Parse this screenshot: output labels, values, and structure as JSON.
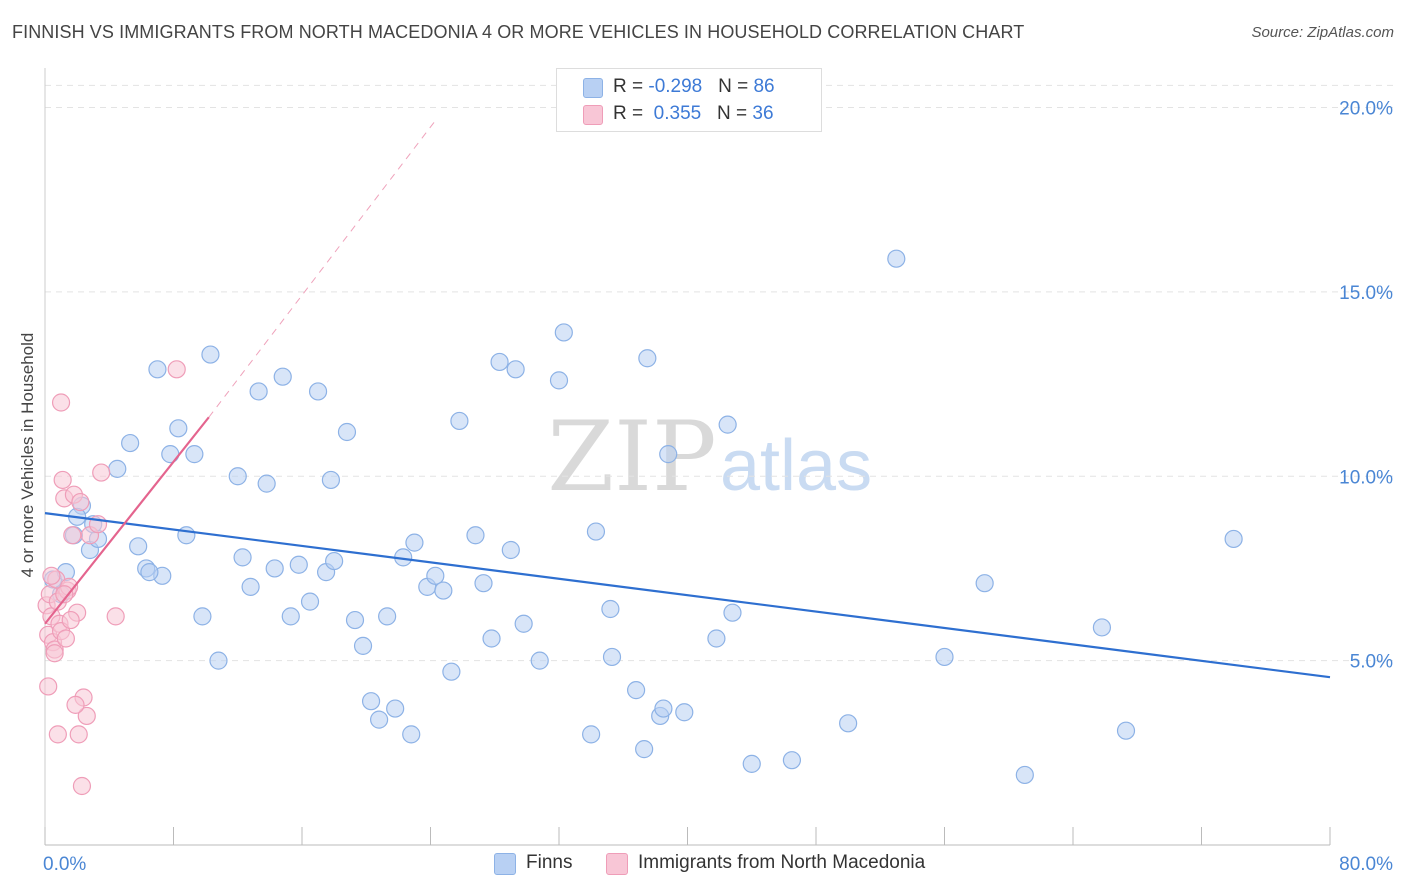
{
  "title": "FINNISH VS IMMIGRANTS FROM NORTH MACEDONIA 4 OR MORE VEHICLES IN HOUSEHOLD CORRELATION CHART",
  "source": "Source: ZipAtlas.com",
  "watermark": {
    "zip": "ZIP",
    "atlas": "atlas"
  },
  "colors": {
    "finns_fill": "#b8d0f3",
    "finns_stroke": "#8db2e6",
    "finns_line": "#2e6fd0",
    "mac_fill": "#f8c6d6",
    "mac_stroke": "#ef9db8",
    "mac_line": "#e4648e",
    "axis_text": "#4a86d4",
    "grid": "#e3e3e3"
  },
  "legend_top": {
    "rows": [
      {
        "r_label": "R = ",
        "r_value": "-0.298",
        "n_label": "N = ",
        "n_value": "86"
      },
      {
        "r_label": "R = ",
        "r_value": " 0.355",
        "n_label": "N = ",
        "n_value": "36"
      }
    ]
  },
  "chart_data": {
    "type": "scatter",
    "title": "FINNISH VS IMMIGRANTS FROM NORTH MACEDONIA 4 OR MORE VEHICLES IN HOUSEHOLD CORRELATION CHART",
    "xlabel": "",
    "ylabel": "4 or more Vehicles in Household",
    "xlim": [
      0,
      80
    ],
    "ylim": [
      0,
      20.8
    ],
    "x_tick_labels": [
      "0.0%",
      "80.0%"
    ],
    "y_ticks": [
      5,
      10,
      15,
      20
    ],
    "y_tick_labels": [
      "5.0%",
      "10.0%",
      "15.0%",
      "20.0%"
    ],
    "grid": true,
    "legend_position": "bottom",
    "series": [
      {
        "name": "Finns",
        "r": -0.298,
        "n": 86,
        "trend": {
          "x": [
            0,
            80
          ],
          "y": [
            9.0,
            4.55
          ],
          "style": "solid"
        },
        "points": [
          [
            0.5,
            7.2
          ],
          [
            1.3,
            7.4
          ],
          [
            1.8,
            8.4
          ],
          [
            2.3,
            9.2
          ],
          [
            2.8,
            8.0
          ],
          [
            3.3,
            8.3
          ],
          [
            4.5,
            10.2
          ],
          [
            5.3,
            10.9
          ],
          [
            5.8,
            8.1
          ],
          [
            6.3,
            7.5
          ],
          [
            7.0,
            12.9
          ],
          [
            7.3,
            7.3
          ],
          [
            7.8,
            10.6
          ],
          [
            8.3,
            11.3
          ],
          [
            8.8,
            8.4
          ],
          [
            9.3,
            10.6
          ],
          [
            9.8,
            6.2
          ],
          [
            10.3,
            13.3
          ],
          [
            10.8,
            5.0
          ],
          [
            12.0,
            10.0
          ],
          [
            12.3,
            7.8
          ],
          [
            12.8,
            7.0
          ],
          [
            13.3,
            12.3
          ],
          [
            13.8,
            9.8
          ],
          [
            14.3,
            7.5
          ],
          [
            14.8,
            12.7
          ],
          [
            15.3,
            6.2
          ],
          [
            15.8,
            7.6
          ],
          [
            16.5,
            6.6
          ],
          [
            17.0,
            12.3
          ],
          [
            17.5,
            7.4
          ],
          [
            17.8,
            9.9
          ],
          [
            18.0,
            7.7
          ],
          [
            18.8,
            11.2
          ],
          [
            19.3,
            6.1
          ],
          [
            19.8,
            5.4
          ],
          [
            20.3,
            3.9
          ],
          [
            20.8,
            3.4
          ],
          [
            21.3,
            6.2
          ],
          [
            21.8,
            3.7
          ],
          [
            22.3,
            7.8
          ],
          [
            22.8,
            3.0
          ],
          [
            23.0,
            8.2
          ],
          [
            23.8,
            7.0
          ],
          [
            24.3,
            7.3
          ],
          [
            24.8,
            6.9
          ],
          [
            25.3,
            4.7
          ],
          [
            25.8,
            11.5
          ],
          [
            26.8,
            8.4
          ],
          [
            27.3,
            7.1
          ],
          [
            27.8,
            5.6
          ],
          [
            28.3,
            13.1
          ],
          [
            29.3,
            12.9
          ],
          [
            29.0,
            8.0
          ],
          [
            29.8,
            6.0
          ],
          [
            30.8,
            5.0
          ],
          [
            32.0,
            12.6
          ],
          [
            32.3,
            13.9
          ],
          [
            34.0,
            3.0
          ],
          [
            34.3,
            8.5
          ],
          [
            35.2,
            6.4
          ],
          [
            35.3,
            5.1
          ],
          [
            36.8,
            4.2
          ],
          [
            37.3,
            2.6
          ],
          [
            37.5,
            13.2
          ],
          [
            38.3,
            3.5
          ],
          [
            38.5,
            3.7
          ],
          [
            38.8,
            10.6
          ],
          [
            39.8,
            3.6
          ],
          [
            41.8,
            5.6
          ],
          [
            42.5,
            11.4
          ],
          [
            42.8,
            6.3
          ],
          [
            44.0,
            2.2
          ],
          [
            46.5,
            2.3
          ],
          [
            50.0,
            3.3
          ],
          [
            53.0,
            15.9
          ],
          [
            56.0,
            5.1
          ],
          [
            58.5,
            7.1
          ],
          [
            61.0,
            1.9
          ],
          [
            65.8,
            5.9
          ],
          [
            67.3,
            3.1
          ],
          [
            74.0,
            8.3
          ],
          [
            6.5,
            7.4
          ],
          [
            1.0,
            6.8
          ],
          [
            2.0,
            8.9
          ],
          [
            3.0,
            8.7
          ]
        ]
      },
      {
        "name": "Immigrants from North Macedonia",
        "r": 0.355,
        "n": 36,
        "trend": {
          "x": [
            0,
            10.2
          ],
          "y": [
            6.0,
            11.6
          ],
          "style": "solid",
          "dashed_extension": {
            "x": [
              10.2,
              24.4
            ],
            "y": [
              11.6,
              19.7
            ]
          }
        },
        "points": [
          [
            0.1,
            6.5
          ],
          [
            0.2,
            5.7
          ],
          [
            0.3,
            6.8
          ],
          [
            0.4,
            6.2
          ],
          [
            0.5,
            5.5
          ],
          [
            0.6,
            5.3
          ],
          [
            0.7,
            7.2
          ],
          [
            0.8,
            6.6
          ],
          [
            0.9,
            6.0
          ],
          [
            1.0,
            5.8
          ],
          [
            1.0,
            12.0
          ],
          [
            1.1,
            9.9
          ],
          [
            1.2,
            9.4
          ],
          [
            1.3,
            5.6
          ],
          [
            1.4,
            6.9
          ],
          [
            1.5,
            7.0
          ],
          [
            1.7,
            8.4
          ],
          [
            1.8,
            9.5
          ],
          [
            2.0,
            6.3
          ],
          [
            2.2,
            9.3
          ],
          [
            2.4,
            4.0
          ],
          [
            2.6,
            3.5
          ],
          [
            2.8,
            8.4
          ],
          [
            3.3,
            8.7
          ],
          [
            3.5,
            10.1
          ],
          [
            4.4,
            6.2
          ],
          [
            8.2,
            12.9
          ],
          [
            0.2,
            4.3
          ],
          [
            0.8,
            3.0
          ],
          [
            1.9,
            3.8
          ],
          [
            2.1,
            3.0
          ],
          [
            2.3,
            1.6
          ],
          [
            0.4,
            7.3
          ],
          [
            1.6,
            6.1
          ],
          [
            0.6,
            5.2
          ],
          [
            1.2,
            6.8
          ]
        ]
      }
    ]
  }
}
